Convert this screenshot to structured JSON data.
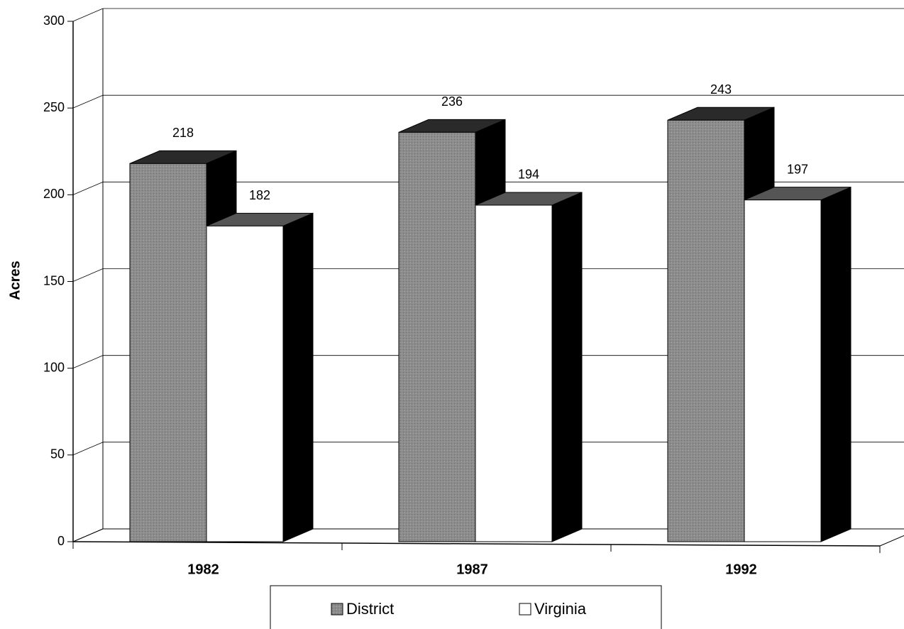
{
  "chart_data": {
    "type": "bar3d",
    "y_label": "Acres",
    "categories": [
      "1982",
      "1987",
      "1992"
    ],
    "series": [
      {
        "name": "District",
        "color": "#8c8c8c",
        "values": [
          218,
          236,
          243
        ]
      },
      {
        "name": "Virginia",
        "color": "#ffffff",
        "values": [
          182,
          194,
          197
        ]
      }
    ],
    "ylim": [
      0,
      300
    ],
    "yticks": [
      0,
      50,
      100,
      150,
      200,
      250,
      300
    ],
    "grid": true,
    "legend": "bottom"
  }
}
